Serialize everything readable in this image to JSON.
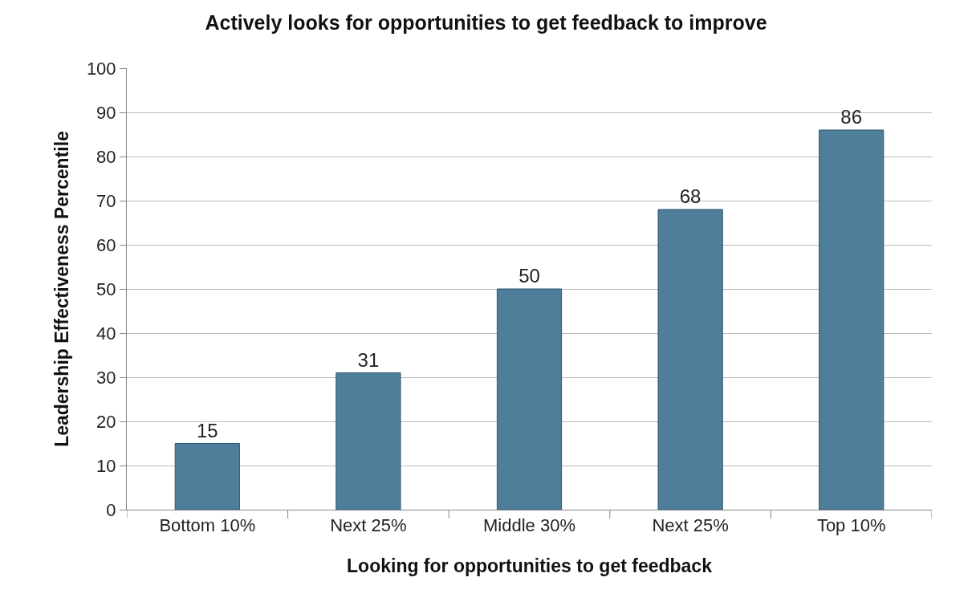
{
  "chart_data": {
    "type": "bar",
    "title": "Actively looks for opportunities to get feedback to improve",
    "xlabel": "Looking for opportunities to get feedback",
    "ylabel": "Leadership Effectiveness Percentile",
    "categories": [
      "Bottom 10%",
      "Next 25%",
      "Middle 30%",
      "Next 25%",
      "Top 10%"
    ],
    "values": [
      15,
      31,
      50,
      68,
      86
    ],
    "color": "#4f7e9a",
    "ylim": [
      0,
      100
    ],
    "yticks": [
      0,
      10,
      20,
      30,
      40,
      50,
      60,
      70,
      80,
      90,
      100
    ],
    "grid": "y",
    "data_labels": true
  }
}
